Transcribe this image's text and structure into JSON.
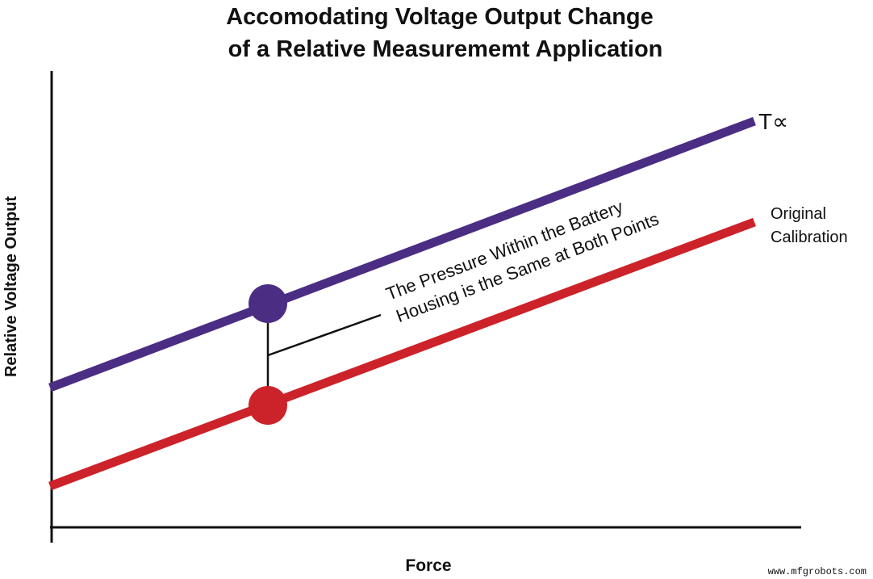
{
  "title": {
    "line1": "Accomodating Voltage Output Change",
    "line2": "of a Relative Measurememt Application"
  },
  "axes": {
    "y_label": "Relative Voltage Output",
    "x_label": "Force"
  },
  "lines": [
    {
      "label": "T∝",
      "color": "#4b2d84"
    },
    {
      "label_lines": [
        "Original",
        "Calibration"
      ],
      "color": "#cc2229"
    }
  ],
  "annotation": {
    "lines": [
      "The Pressure Within the Battery",
      "Housing is the Same at Both Points"
    ]
  },
  "watermark": "www.mfgrobots.com"
}
